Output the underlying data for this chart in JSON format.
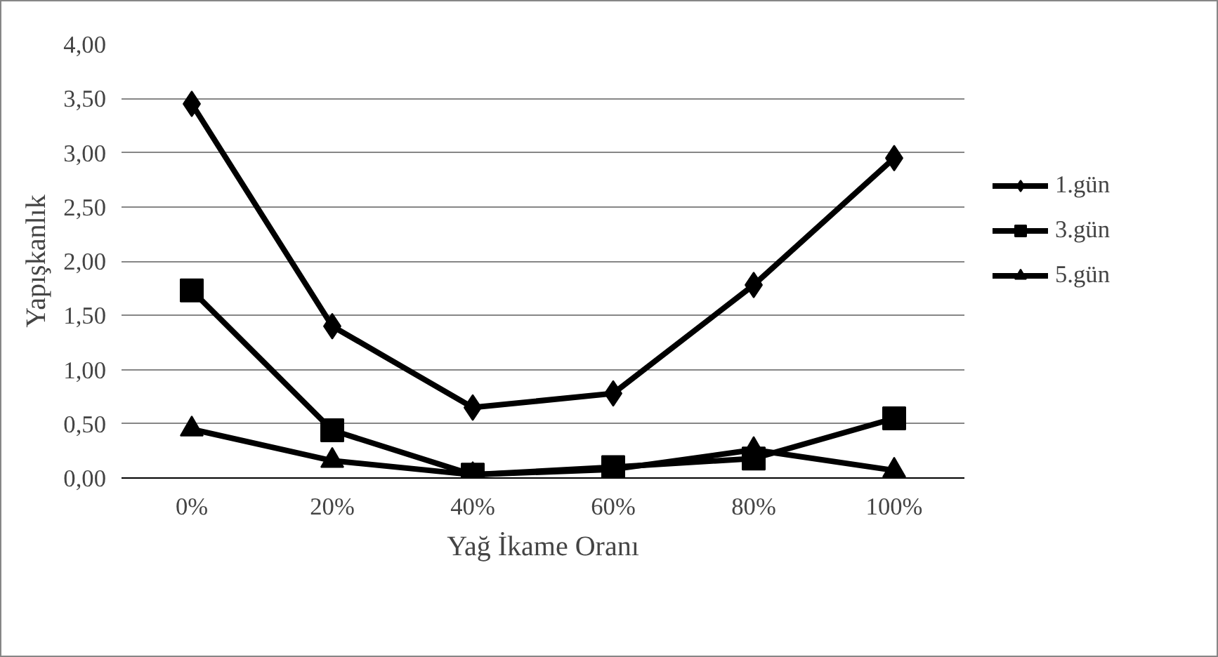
{
  "chart_data": {
    "type": "line",
    "xlabel": "Yağ İkame Oranı",
    "ylabel": "Yapışkanlık",
    "categories": [
      "0%",
      "20%",
      "40%",
      "60%",
      "80%",
      "100%"
    ],
    "series": [
      {
        "name": "1.gün",
        "color": "#000000",
        "marker": "diamond",
        "values": [
          3.45,
          1.4,
          0.65,
          0.78,
          1.78,
          2.95
        ]
      },
      {
        "name": "3.gün",
        "color": "#000000",
        "marker": "square",
        "values": [
          1.73,
          0.44,
          0.03,
          0.1,
          0.18,
          0.55
        ]
      },
      {
        "name": "5.gün",
        "color": "#000000",
        "marker": "triangle",
        "values": [
          0.45,
          0.16,
          0.03,
          0.08,
          0.26,
          0.07
        ]
      }
    ],
    "ylim": [
      0,
      4
    ],
    "yticks": [
      {
        "value": 0,
        "label": "0,00"
      },
      {
        "value": 0.5,
        "label": "0,50"
      },
      {
        "value": 1,
        "label": "1,00"
      },
      {
        "value": 1.5,
        "label": "1,50"
      },
      {
        "value": 2,
        "label": "2,00"
      },
      {
        "value": 2.5,
        "label": "2,50"
      },
      {
        "value": 3,
        "label": "3,00"
      },
      {
        "value": 3.5,
        "label": "3,50"
      },
      {
        "value": 4,
        "label": "4,00"
      }
    ],
    "grid": "y",
    "legend": "right",
    "line_style": "solid"
  }
}
